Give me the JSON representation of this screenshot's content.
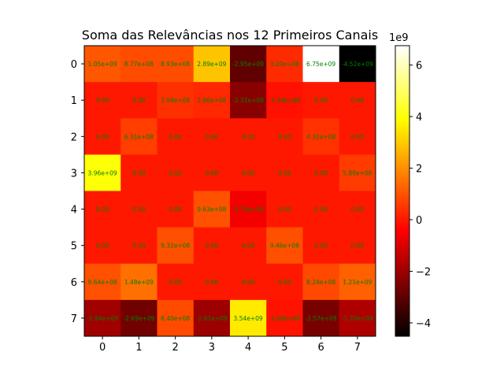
{
  "chart_data": {
    "type": "heatmap",
    "title": "Soma das Relevâncias nos 12 Primeiros Canais",
    "xlabel": "",
    "ylabel": "",
    "x_ticks": [
      "0",
      "1",
      "2",
      "3",
      "4",
      "5",
      "6",
      "7"
    ],
    "y_ticks": [
      "0",
      "1",
      "2",
      "3",
      "4",
      "5",
      "6",
      "7"
    ],
    "colormap": "hot",
    "vmin": -4520000000,
    "vmax": 6750000000,
    "values": [
      [
        1050000000,
        877000000,
        893000000,
        2890000000,
        -2950000000,
        320000000,
        6750000000,
        -4520000000
      ],
      [
        0,
        0,
        398000000,
        266000000,
        -2310000000,
        -134000000,
        0,
        0
      ],
      [
        0,
        631000000,
        0,
        0,
        0,
        0,
        432000000,
        0
      ],
      [
        3960000000,
        0,
        0,
        0,
        0,
        0,
        0,
        588000000
      ],
      [
        0,
        0,
        0,
        963000000,
        -579000000,
        0,
        0,
        0
      ],
      [
        0,
        0,
        932000000,
        0,
        0,
        946000000,
        0,
        0
      ],
      [
        964000000,
        1480000000,
        0,
        0,
        0,
        0,
        824000000,
        1210000000
      ],
      [
        -1940000000,
        -2690000000,
        840000000,
        -2010000000,
        3540000000,
        -100000000,
        -2570000000,
        -1700000000
      ]
    ],
    "cell_labels": [
      [
        "1.05e+09",
        "8.77e+08",
        "8.93e+08",
        "2.89e+09",
        "-2.95e+09",
        "3.20e+08",
        "6.75e+09",
        "-4.52e+09"
      ],
      [
        "0.00",
        "0.00",
        "3.98e+08",
        "2.66e+08",
        "-2.31e+09",
        "-1.34e+08",
        "0.00",
        "0.00"
      ],
      [
        "0.00",
        "6.31e+08",
        "0.00",
        "0.00",
        "0.00",
        "0.00",
        "4.32e+08",
        "0.00"
      ],
      [
        "3.96e+09",
        "0.00",
        "0.00",
        "0.00",
        "0.00",
        "0.00",
        "0.00",
        "5.88e+08"
      ],
      [
        "0.00",
        "0.00",
        "0.00",
        "9.63e+08",
        "-5.79e+08",
        "0.00",
        "0.00",
        "0.00"
      ],
      [
        "0.00",
        "0.00",
        "9.32e+08",
        "0.00",
        "0.00",
        "9.46e+08",
        "0.00",
        "0.00"
      ],
      [
        "9.64e+08",
        "1.48e+09",
        "0.00",
        "0.00",
        "0.00",
        "0.00",
        "8.24e+08",
        "1.21e+09"
      ],
      [
        "-1.94e+09",
        "-2.69e+09",
        "8.40e+08",
        "-2.01e+09",
        "3.54e+09",
        "-1.00e+08",
        "-2.57e+09",
        "-1.70e+09"
      ]
    ],
    "cell_label_color": "#008000",
    "colorbar": {
      "ticks": [
        -4,
        -2,
        0,
        2,
        4,
        6
      ],
      "tick_labels": [
        "−4",
        "−2",
        "0",
        "2",
        "4",
        "6"
      ],
      "scale_label": "1e9"
    },
    "grid": false
  }
}
